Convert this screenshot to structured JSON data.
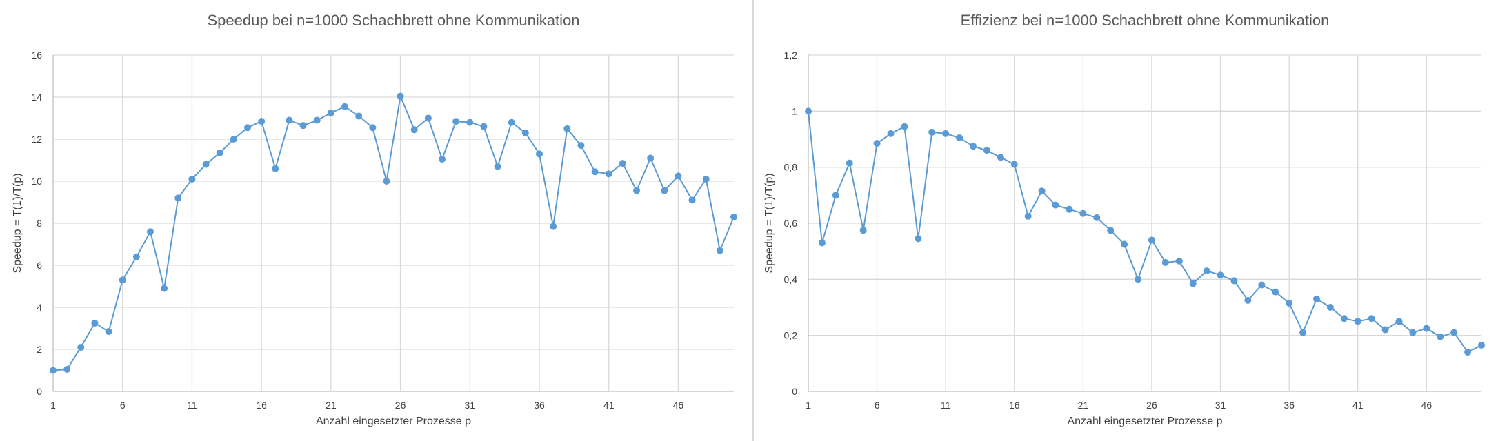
{
  "chart_data": [
    {
      "type": "line",
      "title": "Speedup bei n=1000 Schachbrett ohne Kommunikation",
      "xlabel": "Anzahl eingesetzter Prozesse p",
      "ylabel": "Speedup = T(1)/T(p)",
      "xlim": [
        1,
        50
      ],
      "ylim": [
        0,
        16
      ],
      "x_ticks": [
        "1",
        "6",
        "11",
        "16",
        "21",
        "26",
        "31",
        "36",
        "41",
        "46"
      ],
      "y_ticks": [
        "0",
        "2",
        "4",
        "6",
        "8",
        "10",
        "12",
        "14",
        "16"
      ],
      "grid": true,
      "x": [
        1,
        2,
        3,
        4,
        5,
        6,
        7,
        8,
        9,
        10,
        11,
        12,
        13,
        14,
        15,
        16,
        17,
        18,
        19,
        20,
        21,
        22,
        23,
        24,
        25,
        26,
        27,
        28,
        29,
        30,
        31,
        32,
        33,
        34,
        35,
        36,
        37,
        38,
        39,
        40,
        41,
        42,
        43,
        44,
        45,
        46,
        47,
        48,
        49,
        50
      ],
      "values": [
        1.0,
        1.05,
        2.1,
        3.25,
        2.85,
        5.3,
        6.4,
        7.6,
        4.9,
        9.2,
        10.1,
        10.8,
        11.35,
        12.0,
        12.55,
        12.85,
        10.6,
        12.9,
        12.65,
        12.9,
        13.25,
        13.55,
        13.1,
        12.55,
        10.0,
        14.05,
        12.45,
        13.0,
        11.05,
        12.85,
        12.8,
        12.6,
        10.7,
        12.8,
        12.3,
        11.3,
        7.85,
        12.5,
        11.7,
        10.45,
        10.35,
        10.85,
        9.55,
        11.1,
        9.55,
        10.25,
        9.1,
        10.1,
        6.7,
        8.3
      ]
    },
    {
      "type": "line",
      "title": "Effizienz bei n=1000 Schachbrett ohne Kommunikation",
      "xlabel": "Anzahl eingesetzter Prozesse p",
      "ylabel": "Speedup = T(1)/T(p)",
      "xlim": [
        1,
        50
      ],
      "ylim": [
        0,
        1.2
      ],
      "x_ticks": [
        "1",
        "6",
        "11",
        "16",
        "21",
        "26",
        "31",
        "36",
        "41",
        "46"
      ],
      "y_ticks": [
        "0",
        "0,2",
        "0,4",
        "0,6",
        "0,8",
        "1",
        "1,2"
      ],
      "grid": true,
      "x": [
        1,
        2,
        3,
        4,
        5,
        6,
        7,
        8,
        9,
        10,
        11,
        12,
        13,
        14,
        15,
        16,
        17,
        18,
        19,
        20,
        21,
        22,
        23,
        24,
        25,
        26,
        27,
        28,
        29,
        30,
        31,
        32,
        33,
        34,
        35,
        36,
        37,
        38,
        39,
        40,
        41,
        42,
        43,
        44,
        45,
        46,
        47,
        48,
        49,
        50
      ],
      "values": [
        1.0,
        0.53,
        0.7,
        0.815,
        0.575,
        0.885,
        0.92,
        0.945,
        0.545,
        0.925,
        0.92,
        0.905,
        0.875,
        0.86,
        0.835,
        0.81,
        0.625,
        0.715,
        0.665,
        0.65,
        0.635,
        0.62,
        0.575,
        0.525,
        0.4,
        0.54,
        0.46,
        0.465,
        0.385,
        0.43,
        0.415,
        0.395,
        0.325,
        0.38,
        0.355,
        0.315,
        0.21,
        0.33,
        0.3,
        0.26,
        0.25,
        0.26,
        0.22,
        0.25,
        0.21,
        0.225,
        0.195,
        0.21,
        0.14,
        0.165
      ]
    }
  ]
}
